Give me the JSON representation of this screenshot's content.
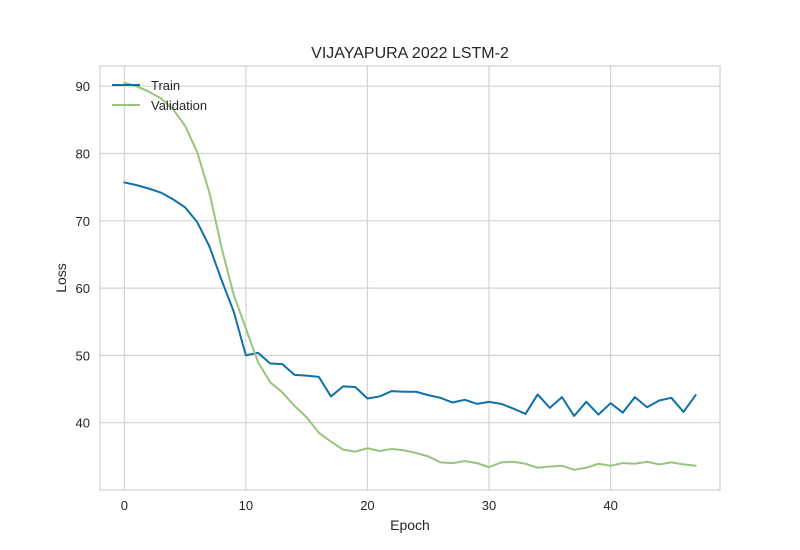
{
  "chart_data": {
    "type": "line",
    "title": "VIJAYAPURA 2022 LSTM-2",
    "xlabel": "Epoch",
    "ylabel": "Loss",
    "xlim": [
      -2,
      49
    ],
    "ylim": [
      30,
      93
    ],
    "xticks": [
      0,
      10,
      20,
      30,
      40
    ],
    "yticks": [
      40,
      50,
      60,
      70,
      80,
      90
    ],
    "grid": true,
    "legend_position": "top-left",
    "colors": {
      "train": "#0e72a8",
      "validation": "#98c47e",
      "grid": "#d4d4d4",
      "frame": "#c8c8c8"
    },
    "x": [
      0,
      1,
      2,
      3,
      4,
      5,
      6,
      7,
      8,
      9,
      10,
      11,
      12,
      13,
      14,
      15,
      16,
      17,
      18,
      19,
      20,
      21,
      22,
      23,
      24,
      25,
      26,
      27,
      28,
      29,
      30,
      31,
      32,
      33,
      34,
      35,
      36,
      37,
      38,
      39,
      40,
      41,
      42,
      43,
      44,
      45,
      46,
      47
    ],
    "series": [
      {
        "name": "Train",
        "color": "#0e72a8",
        "values": [
          75.7,
          75.3,
          74.8,
          74.2,
          73.2,
          72.0,
          69.8,
          66.2,
          61.2,
          56.5,
          50.0,
          50.4,
          48.8,
          48.7,
          47.1,
          47.0,
          46.8,
          43.9,
          45.4,
          45.3,
          43.6,
          43.9,
          44.7,
          44.6,
          44.6,
          44.1,
          43.7,
          43.0,
          43.4,
          42.8,
          43.1,
          42.8,
          42.1,
          41.3,
          44.2,
          42.2,
          43.8,
          41.0,
          43.1,
          41.2,
          42.9,
          41.5,
          43.8,
          42.3,
          43.3,
          43.7,
          41.6,
          44.1
        ]
      },
      {
        "name": "Validation",
        "color": "#98c47e",
        "values": [
          90.5,
          90.0,
          89.2,
          88.2,
          86.6,
          84.1,
          80.2,
          74.2,
          66.0,
          59.0,
          54.0,
          49.0,
          46.0,
          44.5,
          42.5,
          40.8,
          38.5,
          37.2,
          36.0,
          35.7,
          36.2,
          35.8,
          36.1,
          35.9,
          35.5,
          35.0,
          34.1,
          34.0,
          34.3,
          34.0,
          33.4,
          34.1,
          34.2,
          33.9,
          33.3,
          33.5,
          33.6,
          33.0,
          33.3,
          33.9,
          33.6,
          34.0,
          33.9,
          34.2,
          33.8,
          34.1,
          33.8,
          33.6
        ]
      }
    ]
  }
}
